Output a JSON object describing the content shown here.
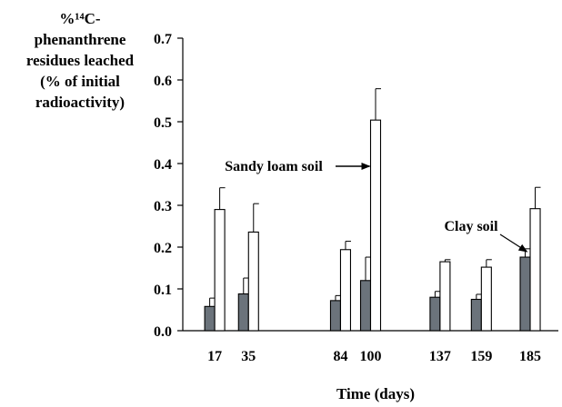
{
  "chart_data": {
    "type": "bar",
    "title": "",
    "ylabel_lines": [
      "%¹⁴C-",
      "phenanthrene",
      "residues leached",
      "(% of initial",
      "radioactivity)"
    ],
    "xlabel": "Time (days)",
    "ylim": [
      0,
      0.7
    ],
    "yticks": [
      "0.0",
      "0.1",
      "0.2",
      "0.3",
      "0.4",
      "0.5",
      "0.6",
      "0.7"
    ],
    "xlim": [
      0,
      200
    ],
    "categories": [
      "17",
      "35",
      "84",
      "100",
      "137",
      "159",
      "185"
    ],
    "series": [
      {
        "name": "Clay soil",
        "color": "#6b737b",
        "values": [
          0.058,
          0.088,
          0.072,
          0.12,
          0.08,
          0.075,
          0.176
        ],
        "errors": [
          0.02,
          0.038,
          0.012,
          0.056,
          0.014,
          0.012,
          0.02
        ]
      },
      {
        "name": "Sandy loam soil",
        "color": "#ffffff",
        "values": [
          0.29,
          0.236,
          0.194,
          0.504,
          0.165,
          0.152,
          0.292
        ],
        "errors": [
          0.052,
          0.068,
          0.02,
          0.075,
          0.005,
          0.018,
          0.051
        ]
      }
    ],
    "annotations": [
      {
        "text": "Sandy loam soil",
        "points_to_series": "Sandy loam soil",
        "category": "100"
      },
      {
        "text": "Clay soil",
        "points_to_series": "Clay soil",
        "category": "185"
      }
    ],
    "grid": false,
    "legend": "none"
  }
}
